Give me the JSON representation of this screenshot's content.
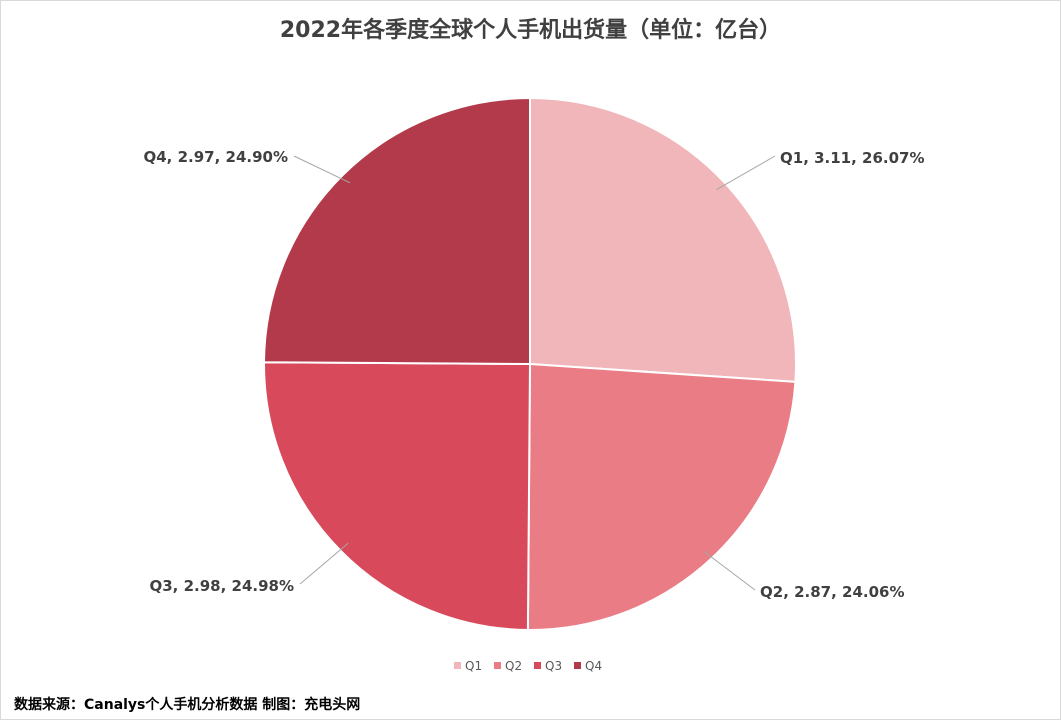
{
  "chart_data": {
    "type": "pie",
    "title": "2022年各季度全球个人手机出货量（单位：亿台）",
    "categories": [
      "Q1",
      "Q2",
      "Q3",
      "Q4"
    ],
    "values": [
      3.11,
      2.87,
      2.98,
      2.97
    ],
    "percentages": [
      "26.07%",
      "24.06%",
      "24.98%",
      "24.90%"
    ],
    "data_labels": [
      "Q1, 3.11, 26.07%",
      "Q2, 2.87, 24.06%",
      "Q3, 2.98, 24.98%",
      "Q4, 2.97, 24.90%"
    ],
    "colors": [
      "#f0b6b9",
      "#ea7c85",
      "#d84a5b",
      "#b33a4a"
    ],
    "legend": {
      "position": "bottom",
      "entries": [
        "Q1",
        "Q2",
        "Q3",
        "Q4"
      ]
    },
    "start_angle_deg": 0,
    "direction": "clockwise"
  },
  "footer": {
    "source": "数据来源：Canalys个人手机分析数据  制图：充电头网"
  }
}
